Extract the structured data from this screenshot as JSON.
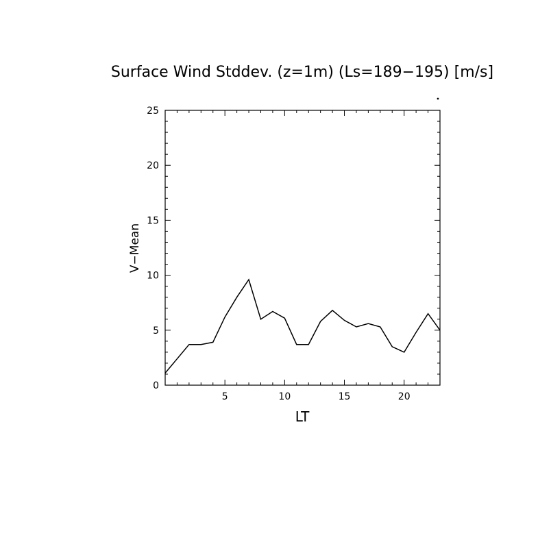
{
  "chart_data": {
    "type": "line",
    "title": "Surface Wind Stddev. (z=1m) (Ls=189−195) [m/s]",
    "xlabel": "LT",
    "ylabel": "V−Mean",
    "xlim": [
      0,
      23
    ],
    "ylim": [
      0,
      25
    ],
    "x_ticks_major": [
      5,
      10,
      15,
      20
    ],
    "y_ticks_major": [
      0,
      5,
      10,
      15,
      20,
      25
    ],
    "grid": false,
    "x": [
      0,
      2,
      3,
      4,
      5,
      6,
      7,
      8,
      9,
      10,
      11,
      12,
      13,
      14,
      15,
      16,
      17,
      18,
      19,
      20,
      21,
      22,
      23
    ],
    "series": [
      {
        "values": [
          1.1,
          3.7,
          3.7,
          3.9,
          6.2,
          8.0,
          9.6,
          6.0,
          6.7,
          6.1,
          3.7,
          3.7,
          5.8,
          6.8,
          5.9,
          5.3,
          5.6,
          5.3,
          3.5,
          3.0,
          4.8,
          6.5,
          5.0
        ]
      }
    ]
  }
}
